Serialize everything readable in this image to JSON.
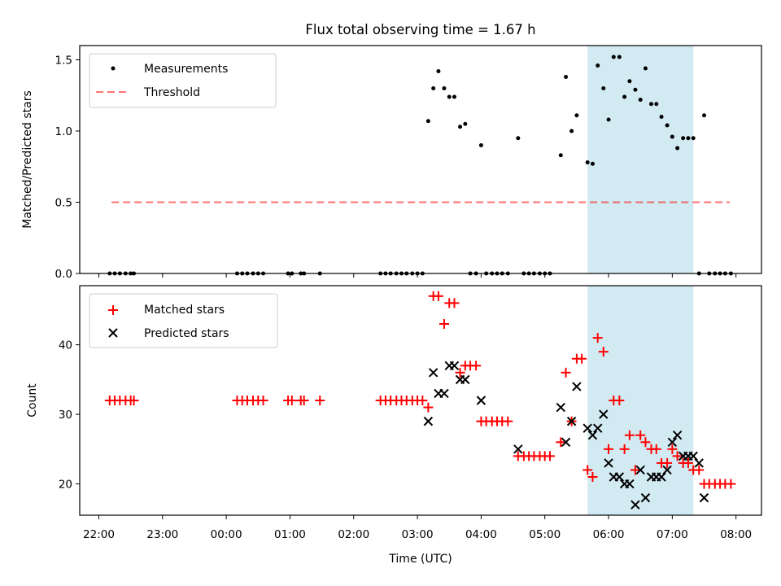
{
  "chart_data": [
    {
      "type": "scatter",
      "title": "Flux total observing time = 1.67 h",
      "xlabel": "",
      "ylabel": "Matched/Predicted stars",
      "ylim": [
        0,
        1.6
      ],
      "yticks": [
        "0.0",
        "0.5",
        "1.0",
        "1.5"
      ],
      "ytick_values": [
        0,
        0.5,
        1.0,
        1.5
      ],
      "shaded_interval_hours": [
        5.67,
        7.33
      ],
      "shade_color": "#add8e6",
      "legend_position": "upper-left",
      "legend": [
        "Measurements",
        "Threshold"
      ],
      "threshold": {
        "name": "Threshold",
        "value": 0.5,
        "x_range": [
          -1.8,
          7.9
        ],
        "color": "#ff0000"
      },
      "series": [
        {
          "name": "Measurements",
          "color": "#000000",
          "x": [
            -1.83,
            -1.75,
            -1.67,
            -1.58,
            -1.5,
            -1.45,
            0.17,
            0.25,
            0.33,
            0.42,
            0.5,
            0.58,
            0.97,
            1.03,
            1.17,
            1.22,
            1.47,
            2.42,
            2.5,
            2.58,
            2.67,
            2.75,
            2.83,
            2.92,
            3.0,
            3.08,
            3.17,
            3.25,
            3.33,
            3.42,
            3.5,
            3.58,
            3.67,
            3.75,
            3.83,
            3.92,
            4.0,
            4.08,
            4.17,
            4.25,
            4.33,
            4.42,
            4.58,
            4.67,
            4.75,
            4.83,
            4.92,
            5.0,
            5.08,
            5.25,
            5.33,
            5.42,
            5.5,
            5.67,
            5.75,
            5.83,
            5.92,
            6.0,
            6.08,
            6.17,
            6.25,
            6.33,
            6.42,
            6.5,
            6.58,
            6.67,
            6.75,
            6.83,
            6.92,
            7.0,
            7.08,
            7.17,
            7.25,
            7.33,
            7.42,
            7.5,
            7.58,
            7.67,
            7.75,
            7.83,
            7.92
          ],
          "y": [
            0,
            0,
            0,
            0,
            0,
            0,
            0,
            0,
            0,
            0,
            0,
            0,
            0,
            0,
            0,
            0,
            0,
            0,
            0,
            0,
            0,
            0,
            0,
            0,
            0,
            0,
            1.07,
            1.3,
            1.42,
            1.3,
            1.24,
            1.24,
            1.03,
            1.05,
            0,
            0,
            0.9,
            0,
            0,
            0,
            0,
            0,
            0.95,
            0,
            0,
            0,
            0,
            0,
            0,
            0.83,
            1.38,
            1.0,
            1.11,
            0.78,
            0.77,
            1.46,
            1.3,
            1.08,
            1.52,
            1.52,
            1.24,
            1.35,
            1.29,
            1.22,
            1.44,
            1.19,
            1.19,
            1.1,
            1.04,
            0.96,
            0.88,
            0.95,
            0.95,
            0.95,
            0,
            1.11,
            0,
            0,
            0,
            0,
            0
          ]
        }
      ]
    },
    {
      "type": "scatter",
      "title": "",
      "xlabel": "Time (UTC)",
      "ylabel": "Count",
      "ylim": [
        15.5,
        48.5
      ],
      "yticks": [
        "20",
        "30",
        "40"
      ],
      "ytick_values": [
        20,
        30,
        40
      ],
      "xlim_hours": [
        -2.3,
        8.4
      ],
      "xtick_values": [
        -2,
        -1,
        0,
        1,
        2,
        3,
        4,
        5,
        6,
        7,
        8
      ],
      "categories": [
        "22:00",
        "23:00",
        "00:00",
        "01:00",
        "02:00",
        "03:00",
        "04:00",
        "05:00",
        "06:00",
        "07:00",
        "08:00"
      ],
      "shaded_interval_hours": [
        5.67,
        7.33
      ],
      "legend_position": "upper-left",
      "legend": [
        "Matched stars",
        "Predicted stars"
      ],
      "series": [
        {
          "name": "Matched stars",
          "marker": "+",
          "color": "#ff0000",
          "x": [
            -1.83,
            -1.75,
            -1.67,
            -1.58,
            -1.5,
            -1.45,
            0.17,
            0.25,
            0.33,
            0.42,
            0.5,
            0.58,
            0.97,
            1.03,
            1.17,
            1.22,
            1.47,
            2.42,
            2.5,
            2.58,
            2.67,
            2.75,
            2.83,
            2.92,
            3.0,
            3.08,
            3.17,
            3.25,
            3.33,
            3.42,
            3.5,
            3.58,
            3.67,
            3.75,
            3.83,
            3.92,
            4.0,
            4.08,
            4.17,
            4.25,
            4.33,
            4.42,
            4.58,
            4.67,
            4.75,
            4.83,
            4.92,
            5.0,
            5.08,
            5.25,
            5.33,
            5.42,
            5.5,
            5.58,
            5.67,
            5.75,
            5.83,
            5.92,
            6.0,
            6.08,
            6.17,
            6.25,
            6.33,
            6.42,
            6.5,
            6.58,
            6.67,
            6.75,
            6.83,
            6.92,
            7.0,
            7.08,
            7.17,
            7.25,
            7.33,
            7.42,
            7.5,
            7.58,
            7.67,
            7.75,
            7.83,
            7.92
          ],
          "y": [
            32,
            32,
            32,
            32,
            32,
            32,
            32,
            32,
            32,
            32,
            32,
            32,
            32,
            32,
            32,
            32,
            32,
            32,
            32,
            32,
            32,
            32,
            32,
            32,
            32,
            32,
            31,
            47,
            47,
            43,
            46,
            46,
            36,
            37,
            37,
            37,
            29,
            29,
            29,
            29,
            29,
            29,
            24,
            24,
            24,
            24,
            24,
            24,
            24,
            26,
            36,
            29,
            38,
            38,
            22,
            21,
            41,
            39,
            25,
            32,
            32,
            25,
            27,
            22,
            27,
            26,
            25,
            25,
            23,
            23,
            25,
            24,
            23,
            23,
            22,
            22,
            20,
            20,
            20,
            20,
            20,
            20
          ]
        },
        {
          "name": "Predicted stars",
          "marker": "x",
          "color": "#000000",
          "x": [
            3.17,
            3.25,
            3.33,
            3.42,
            3.5,
            3.58,
            3.67,
            3.75,
            4.0,
            4.58,
            5.25,
            5.33,
            5.42,
            5.5,
            5.67,
            5.75,
            5.83,
            5.92,
            6.0,
            6.08,
            6.17,
            6.25,
            6.33,
            6.42,
            6.5,
            6.58,
            6.67,
            6.75,
            6.83,
            6.92,
            7.0,
            7.08,
            7.17,
            7.25,
            7.33,
            7.42,
            7.5
          ],
          "y": [
            29,
            36,
            33,
            33,
            37,
            37,
            35,
            35,
            32,
            25,
            31,
            26,
            29,
            34,
            28,
            27,
            28,
            30,
            23,
            21,
            21,
            20,
            20,
            17,
            22,
            18,
            21,
            21,
            21,
            22,
            26,
            27,
            24,
            24,
            24,
            23,
            18
          ]
        }
      ]
    }
  ]
}
